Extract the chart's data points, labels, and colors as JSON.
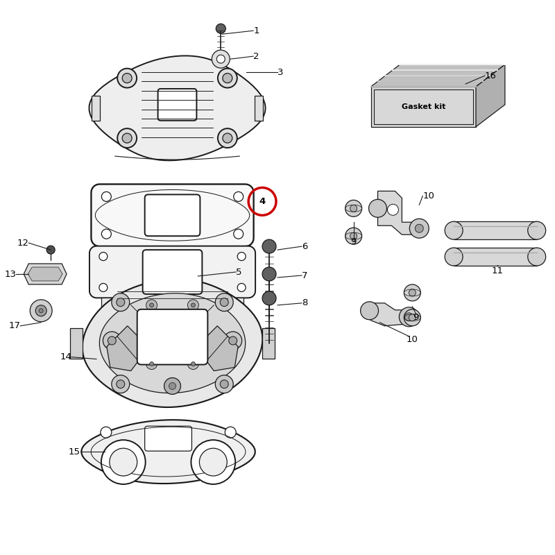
{
  "bg_color": "#ffffff",
  "line_color": "#1a1a1a",
  "label_color": "#000000",
  "highlight_circle_color": "#cc0000",
  "lw_main": 1.4,
  "lw_thin": 0.9,
  "lw_label": 0.8,
  "label_fs": 9.5,
  "fig_w": 8.0,
  "fig_h": 8.0,
  "dpi": 100
}
